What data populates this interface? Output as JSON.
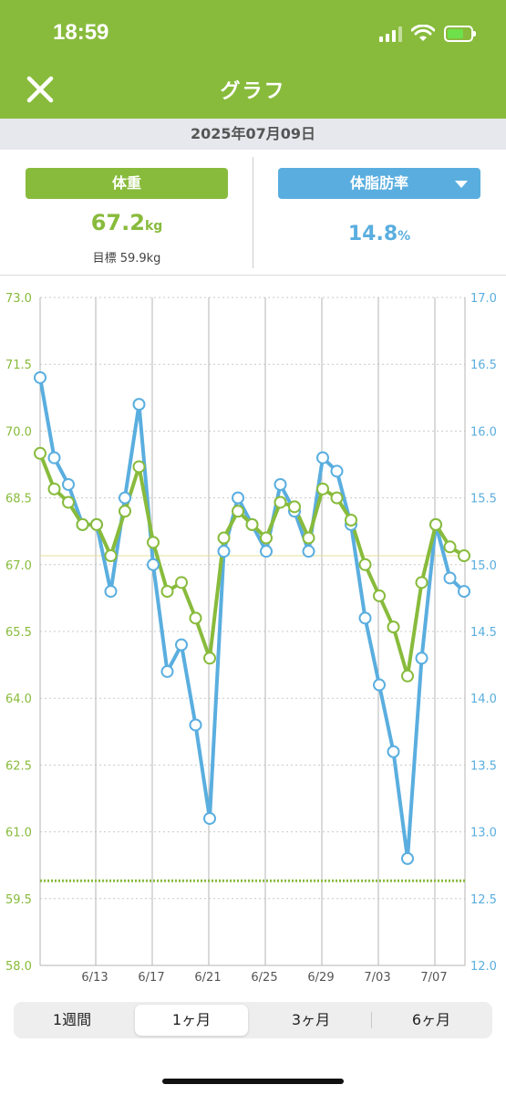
{
  "status_bar": {
    "time": "18:59"
  },
  "header": {
    "title": "グラフ",
    "close_icon": "close-icon"
  },
  "date": "2025年07月09日",
  "weight": {
    "button_label": "体重",
    "value": "67.2",
    "unit": "kg",
    "goal_label": "目標 59.9kg"
  },
  "body_fat": {
    "button_label": "体脂肪率",
    "value": "14.8",
    "unit": "%"
  },
  "tabs": [
    {
      "label": "1週間",
      "active": false
    },
    {
      "label": "1ヶ月",
      "active": true
    },
    {
      "label": "3ヶ月",
      "active": false
    },
    {
      "label": "6ヶ月",
      "active": false
    }
  ],
  "colors": {
    "weight": "#88bb3c",
    "body_fat": "#5aaedf",
    "header": "#88bb3c"
  },
  "chart_data": {
    "type": "line",
    "x_tick_labels": [
      "6/13",
      "6/17",
      "6/21",
      "6/25",
      "6/29",
      "7/03",
      "7/07"
    ],
    "y_left_ticks": [
      "73.0",
      "71.5",
      "70.0",
      "68.5",
      "67.0",
      "65.5",
      "64.0",
      "62.5",
      "61.0",
      "59.5",
      "58.0"
    ],
    "y_right_ticks": [
      "17.0",
      "16.5",
      "16.0",
      "15.5",
      "15.0",
      "14.5",
      "14.0",
      "13.5",
      "13.0",
      "12.5",
      "12.0"
    ],
    "ylim_left": [
      58.0,
      73.0
    ],
    "ylim_right": [
      12.0,
      17.0
    ],
    "x_days": [
      0,
      1,
      2,
      3,
      4,
      5,
      6,
      7,
      8,
      9,
      10,
      11,
      12,
      13,
      14,
      15,
      16,
      17,
      18,
      19,
      20,
      21,
      22,
      23,
      24,
      25,
      26,
      27,
      28,
      29,
      30
    ],
    "series": [
      {
        "name": "体重",
        "axis": "left",
        "values": [
          69.5,
          68.7,
          68.4,
          67.9,
          67.9,
          67.2,
          68.2,
          69.2,
          67.5,
          66.4,
          66.6,
          65.8,
          64.9,
          67.6,
          68.2,
          67.9,
          67.6,
          68.4,
          68.3,
          67.6,
          68.7,
          68.5,
          68.0,
          67.0,
          66.3,
          65.6,
          64.5,
          66.6,
          67.9,
          67.4,
          67.2
        ]
      },
      {
        "name": "体脂肪率",
        "axis": "right",
        "values": [
          16.4,
          15.8,
          15.6,
          15.3,
          15.3,
          14.8,
          15.5,
          16.2,
          15.0,
          14.2,
          14.4,
          13.8,
          13.1,
          15.1,
          15.5,
          15.3,
          15.1,
          15.6,
          15.4,
          15.1,
          15.8,
          15.7,
          15.3,
          14.6,
          14.1,
          13.6,
          12.8,
          14.3,
          15.3,
          14.9,
          14.8
        ]
      }
    ],
    "reference_lines": [
      {
        "value": 67.2,
        "axis": "left"
      },
      {
        "value": 59.9,
        "axis": "left",
        "dotted": true
      }
    ],
    "grid": true
  }
}
